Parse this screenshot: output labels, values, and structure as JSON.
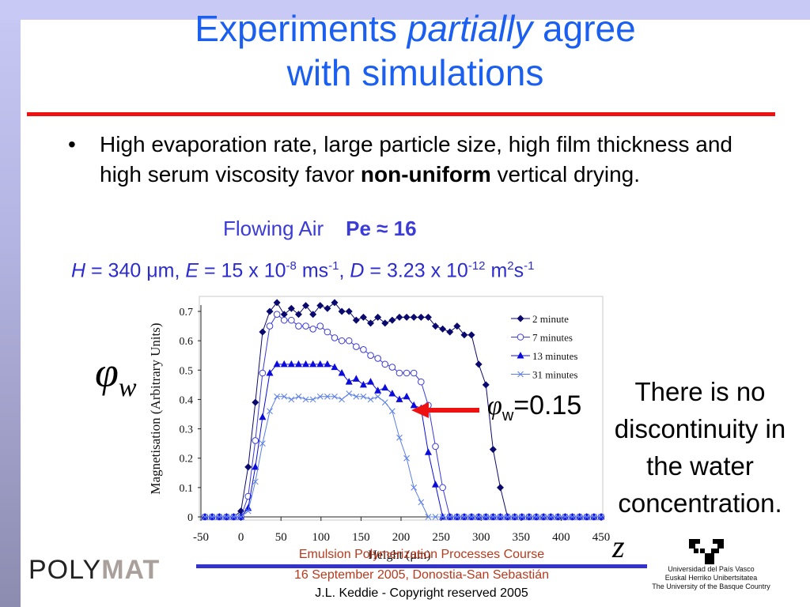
{
  "slide": {
    "title_part1": "Experiments ",
    "title_italic": "partially",
    "title_part2": " agree",
    "title_line2": "with simulations",
    "bullet_symbol": "•",
    "bullet_text_start": "High evaporation rate, large particle size, high film thickness and high serum viscosity favor ",
    "bullet_text_bold": "non-uniform",
    "bullet_text_end": " vertical drying.",
    "flowing_label": "Flowing Air",
    "pe_label": "Pe ≈ 16",
    "params": {
      "H_sym": "H",
      "H_val": " = 340 μm, ",
      "E_sym": "E",
      "E_val": " = 15 x 10",
      "E_exp": "-8",
      "E_unit": " ms",
      "E_unit_exp": "-1",
      "sep": ", ",
      "D_sym": "D",
      "D_val": " = 3.23 x 10",
      "D_exp": "-12",
      "D_unit": " m",
      "D_unit_exp1": "2",
      "D_unit2": "s",
      "D_unit_exp2": "-1"
    },
    "phi_symbol": "φ",
    "phi_sub": "w",
    "annotation_phi": "φ",
    "annotation_sub": "w",
    "annotation_value": "=0.15",
    "side_note": "There is no discontinuity in the water concentration.",
    "z_label": "z",
    "colors": {
      "title": "#1a5ff0",
      "rule": "#ee1111",
      "params": "#2b2bd0",
      "arrow": "#ee1111"
    }
  },
  "footer": {
    "line1": "Emulsion Polymerization Processes Course",
    "line2": "16 September 2005, Donostia-San Sebastián",
    "line3": "J.L. Keddie - Copyright reserved 2005",
    "polymat_a": "POLY",
    "polymat_b": "MAT",
    "upv_line1": "Universidad del País Vasco",
    "upv_line2": "Euskal Herriko Unibertsitatea",
    "upv_line3": "The University of the Basque Country"
  },
  "chart_data": {
    "type": "line",
    "title": "",
    "xlabel": "Height (μm)",
    "ylabel": "Magnetisation (Arbitrary Units)",
    "xlim": [
      -50,
      450
    ],
    "ylim": [
      0,
      0.7
    ],
    "xticks": [
      -50,
      0,
      50,
      100,
      150,
      200,
      250,
      300,
      350,
      400,
      450
    ],
    "yticks": [
      0,
      0.1,
      0.2,
      0.3,
      0.4,
      0.5,
      0.6,
      0.7
    ],
    "yticklabels": [
      "0",
      "0.1",
      "0.2",
      "0.3",
      "0.4",
      "0.5",
      "0.6",
      "0.7"
    ],
    "grid": false,
    "legend_position": "upper right",
    "series": [
      {
        "name": "2 minute",
        "marker": "diamond",
        "color": "#0a0a6e",
        "x": [
          -45,
          -36,
          -27,
          -18,
          -9,
          0,
          9,
          18,
          27,
          36,
          45,
          54,
          63,
          72,
          81,
          90,
          99,
          108,
          117,
          126,
          135,
          144,
          153,
          162,
          171,
          180,
          189,
          198,
          207,
          216,
          225,
          234,
          243,
          252,
          261,
          270,
          279,
          288,
          297,
          306,
          315,
          324,
          333,
          342,
          351,
          360,
          369,
          378,
          387,
          396,
          405,
          414,
          423,
          432,
          441,
          450
        ],
        "y": [
          0,
          0,
          0,
          0,
          0,
          0.02,
          0.17,
          0.39,
          0.63,
          0.7,
          0.73,
          0.69,
          0.71,
          0.69,
          0.72,
          0.69,
          0.72,
          0.71,
          0.73,
          0.7,
          0.7,
          0.67,
          0.68,
          0.66,
          0.68,
          0.66,
          0.67,
          0.68,
          0.68,
          0.68,
          0.68,
          0.68,
          0.65,
          0.64,
          0.63,
          0.65,
          0.62,
          0.62,
          0.52,
          0.45,
          0.23,
          0.1,
          0,
          0,
          0,
          0,
          0,
          0,
          0,
          0,
          0,
          0,
          0,
          0,
          0,
          0
        ]
      },
      {
        "name": "7 minutes",
        "marker": "circle",
        "color": "#3a3ad8",
        "x": [
          -45,
          -36,
          -27,
          -18,
          -9,
          0,
          9,
          18,
          27,
          36,
          45,
          54,
          63,
          72,
          81,
          90,
          99,
          108,
          117,
          126,
          135,
          144,
          153,
          162,
          171,
          180,
          189,
          198,
          207,
          216,
          225,
          234,
          243,
          252,
          261,
          270,
          279,
          288,
          297,
          306,
          315,
          324,
          333,
          342,
          351,
          360,
          369,
          378,
          387,
          396,
          405,
          414,
          423,
          432,
          441,
          450
        ],
        "y": [
          0,
          0,
          0,
          0,
          0,
          0,
          0.07,
          0.26,
          0.49,
          0.65,
          0.69,
          0.67,
          0.67,
          0.65,
          0.65,
          0.64,
          0.65,
          0.63,
          0.61,
          0.6,
          0.6,
          0.58,
          0.57,
          0.55,
          0.54,
          0.52,
          0.51,
          0.49,
          0.49,
          0.49,
          0.46,
          0.38,
          0.24,
          0.1,
          0,
          0,
          0,
          0,
          0,
          0,
          0,
          0,
          0,
          0,
          0,
          0,
          0,
          0,
          0,
          0,
          0,
          0,
          0,
          0,
          0,
          0
        ]
      },
      {
        "name": "13 minutes",
        "marker": "triangle",
        "color": "#0b0bdc",
        "x": [
          -45,
          -36,
          -27,
          -18,
          -9,
          0,
          9,
          18,
          27,
          36,
          45,
          54,
          63,
          72,
          81,
          90,
          99,
          108,
          117,
          126,
          135,
          144,
          153,
          162,
          171,
          180,
          189,
          198,
          207,
          216,
          225,
          234,
          243,
          252,
          261,
          270,
          279,
          288,
          297,
          306,
          315,
          324,
          333,
          342,
          351,
          360,
          369,
          378,
          387,
          396,
          405,
          414,
          423,
          432,
          441,
          450
        ],
        "y": [
          0,
          0,
          0,
          0,
          0,
          0,
          0.03,
          0.17,
          0.34,
          0.49,
          0.52,
          0.52,
          0.52,
          0.52,
          0.52,
          0.52,
          0.52,
          0.52,
          0.51,
          0.49,
          0.46,
          0.47,
          0.45,
          0.46,
          0.43,
          0.44,
          0.42,
          0.4,
          0.41,
          0.38,
          0.37,
          0.22,
          0.11,
          0,
          0,
          0,
          0,
          0,
          0,
          0,
          0,
          0,
          0,
          0,
          0,
          0,
          0,
          0,
          0,
          0,
          0,
          0,
          0,
          0,
          0,
          0
        ]
      },
      {
        "name": "31 minutes",
        "marker": "x",
        "color": "#5a7ee8",
        "x": [
          -45,
          -36,
          -27,
          -18,
          -9,
          0,
          9,
          18,
          27,
          36,
          45,
          54,
          63,
          72,
          81,
          90,
          99,
          108,
          117,
          126,
          135,
          144,
          153,
          162,
          171,
          180,
          189,
          198,
          207,
          216,
          225,
          234,
          243,
          252,
          261,
          270,
          279,
          288,
          297,
          306,
          315,
          324,
          333,
          342,
          351,
          360,
          369,
          378,
          387,
          396,
          405,
          414,
          423,
          432,
          441,
          450
        ],
        "y": [
          0,
          0,
          0,
          0,
          0,
          0,
          0.02,
          0.12,
          0.25,
          0.36,
          0.41,
          0.41,
          0.4,
          0.41,
          0.4,
          0.4,
          0.41,
          0.41,
          0.41,
          0.4,
          0.42,
          0.41,
          0.41,
          0.4,
          0.41,
          0.39,
          0.36,
          0.27,
          0.2,
          0.1,
          0.05,
          0,
          0,
          0,
          0,
          0,
          0,
          0,
          0,
          0,
          0,
          0,
          0,
          0,
          0,
          0,
          0,
          0,
          0,
          0,
          0,
          0,
          0,
          0,
          0,
          0
        ]
      }
    ]
  }
}
